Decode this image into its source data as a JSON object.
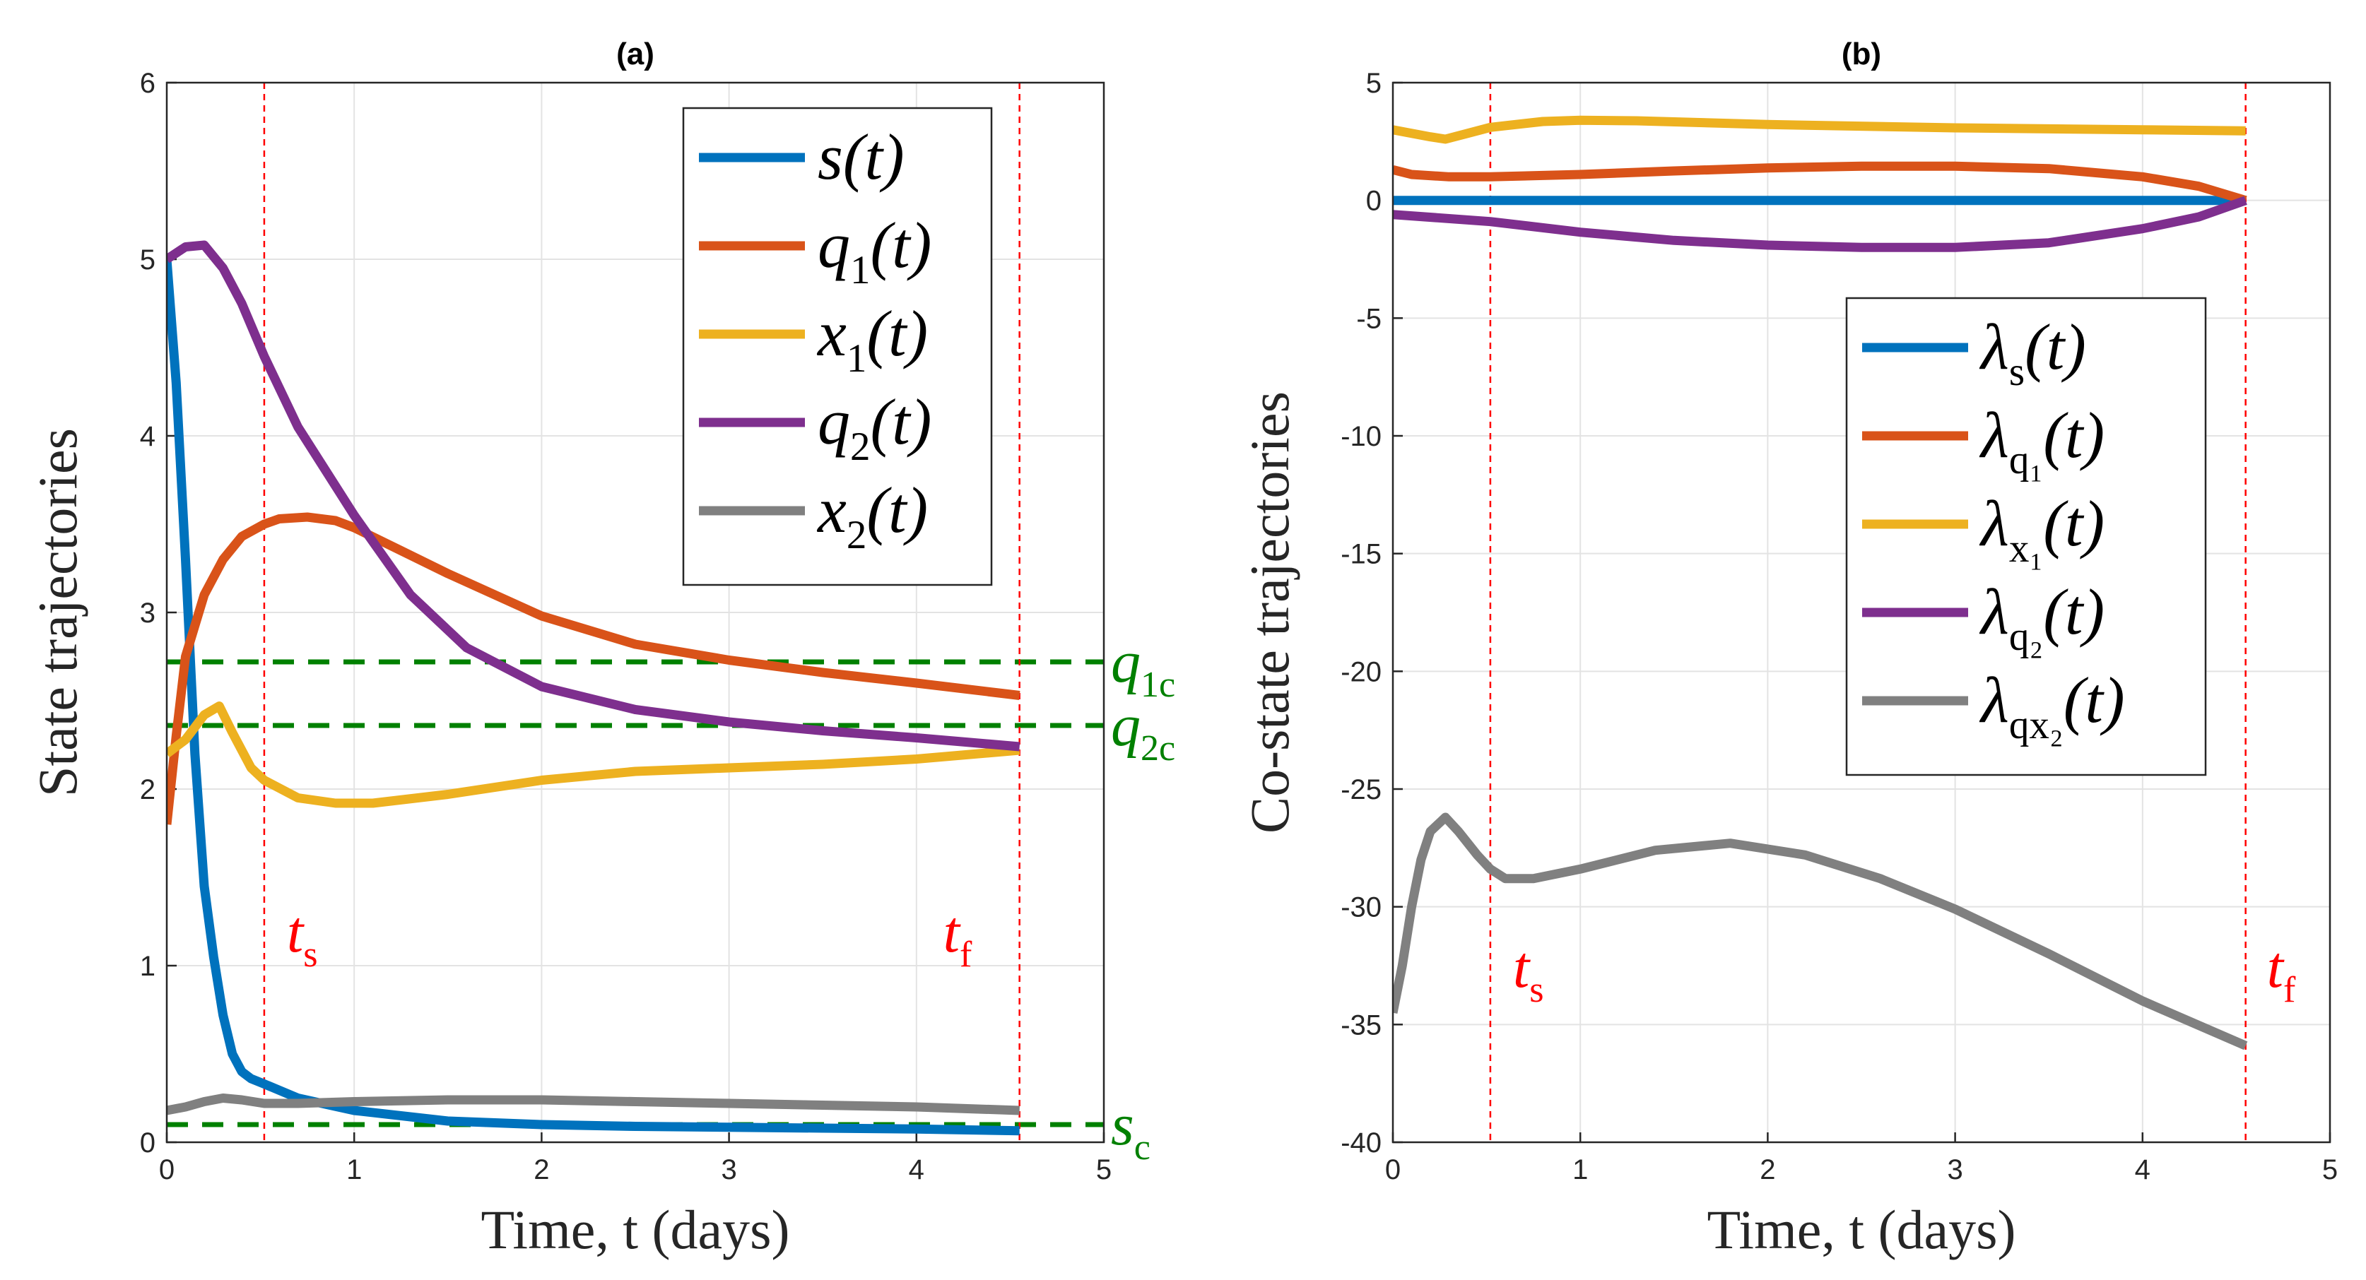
{
  "chart_data": [
    {
      "type": "line",
      "title": "(a)",
      "xlabel": "Time, t (days)",
      "ylabel": "State trajectories",
      "xlim": [
        0,
        5
      ],
      "ylim": [
        0,
        6
      ],
      "xticks": [
        0,
        1,
        2,
        3,
        4,
        5
      ],
      "yticks": [
        0,
        1,
        2,
        3,
        4,
        5,
        6
      ],
      "xtick_labels": [
        "0",
        "1",
        "2",
        "3",
        "4",
        "5"
      ],
      "ytick_labels": [
        "0",
        "1",
        "2",
        "3",
        "4",
        "5",
        "6"
      ],
      "grid": true,
      "legend_position": "top-right",
      "series": [
        {
          "name": "s(t)",
          "color": "#0072BD",
          "x": [
            0,
            0.05,
            0.1,
            0.15,
            0.2,
            0.25,
            0.3,
            0.35,
            0.4,
            0.45,
            0.52,
            0.7,
            1.0,
            1.5,
            2.0,
            2.5,
            3.0,
            3.5,
            4.0,
            4.55
          ],
          "y": [
            5.0,
            4.3,
            3.3,
            2.2,
            1.45,
            1.05,
            0.72,
            0.5,
            0.4,
            0.36,
            0.33,
            0.25,
            0.18,
            0.12,
            0.1,
            0.09,
            0.085,
            0.08,
            0.075,
            0.065
          ]
        },
        {
          "name": "q1(t)",
          "color": "#D95319",
          "x": [
            0,
            0.05,
            0.1,
            0.2,
            0.3,
            0.4,
            0.52,
            0.6,
            0.75,
            0.9,
            1.0,
            1.25,
            1.5,
            2.0,
            2.5,
            3.0,
            3.5,
            4.0,
            4.55
          ],
          "y": [
            1.8,
            2.3,
            2.75,
            3.1,
            3.3,
            3.43,
            3.5,
            3.53,
            3.54,
            3.52,
            3.48,
            3.35,
            3.22,
            2.98,
            2.82,
            2.73,
            2.66,
            2.6,
            2.53
          ]
        },
        {
          "name": "x1(t)",
          "color": "#EDB120",
          "x": [
            0,
            0.1,
            0.2,
            0.28,
            0.35,
            0.45,
            0.52,
            0.7,
            0.9,
            1.1,
            1.5,
            2.0,
            2.5,
            3.0,
            3.5,
            4.0,
            4.55
          ],
          "y": [
            2.2,
            2.28,
            2.42,
            2.47,
            2.32,
            2.12,
            2.05,
            1.95,
            1.92,
            1.92,
            1.97,
            2.05,
            2.1,
            2.12,
            2.14,
            2.17,
            2.22
          ]
        },
        {
          "name": "q2(t)",
          "color": "#7E2F8E",
          "x": [
            0,
            0.1,
            0.2,
            0.3,
            0.4,
            0.52,
            0.7,
            1.0,
            1.3,
            1.6,
            2.0,
            2.5,
            3.0,
            3.5,
            4.0,
            4.55
          ],
          "y": [
            5.0,
            5.07,
            5.08,
            4.95,
            4.75,
            4.45,
            4.05,
            3.55,
            3.1,
            2.8,
            2.58,
            2.45,
            2.38,
            2.33,
            2.29,
            2.24
          ]
        },
        {
          "name": "x2(t)",
          "color": "#808080",
          "x": [
            0,
            0.1,
            0.2,
            0.3,
            0.4,
            0.52,
            0.7,
            1.0,
            1.5,
            2.0,
            2.5,
            3.0,
            3.5,
            4.0,
            4.55
          ],
          "y": [
            0.18,
            0.2,
            0.23,
            0.25,
            0.24,
            0.22,
            0.22,
            0.23,
            0.24,
            0.24,
            0.23,
            0.22,
            0.21,
            0.2,
            0.18
          ]
        }
      ],
      "hlines": [
        {
          "label": "q1c",
          "y": 2.72,
          "color": "#008000"
        },
        {
          "label": "q2c",
          "y": 2.36,
          "color": "#008000"
        },
        {
          "label": "sc",
          "y": 0.1,
          "color": "#008000"
        }
      ],
      "vlines": [
        {
          "label": "ts",
          "x": 0.52,
          "color": "#FF0000",
          "label_y": 1.2
        },
        {
          "label": "tf",
          "x": 4.55,
          "color": "#FF0000",
          "label_y": 1.2
        }
      ]
    },
    {
      "type": "line",
      "title": "(b)",
      "xlabel": "Time, t (days)",
      "ylabel": "Co-state trajectories",
      "xlim": [
        0,
        5
      ],
      "ylim": [
        -40,
        5
      ],
      "xticks": [
        0,
        1,
        2,
        3,
        4,
        5
      ],
      "yticks": [
        5,
        0,
        -5,
        -10,
        -15,
        -20,
        -25,
        -30,
        -35,
        -40
      ],
      "xtick_labels": [
        "0",
        "1",
        "2",
        "3",
        "4",
        "5"
      ],
      "ytick_labels": [
        "5",
        "0",
        "-5",
        "-10",
        "-15",
        "-20",
        "-25",
        "-30",
        "-35",
        "-40"
      ],
      "grid": true,
      "legend_position": "top-right",
      "series": [
        {
          "name": "λs(t)",
          "color": "#0072BD",
          "x": [
            0,
            1,
            2,
            3,
            4,
            4.55
          ],
          "y": [
            0,
            0,
            0,
            0,
            0,
            0
          ]
        },
        {
          "name": "λq1(t)",
          "color": "#D95319",
          "x": [
            0,
            0.1,
            0.3,
            0.52,
            1.0,
            1.5,
            2.0,
            2.5,
            3.0,
            3.5,
            4.0,
            4.3,
            4.55
          ],
          "y": [
            1.3,
            1.1,
            1.0,
            1.0,
            1.1,
            1.25,
            1.38,
            1.45,
            1.45,
            1.35,
            1.0,
            0.6,
            0.0
          ]
        },
        {
          "name": "λx1(t)",
          "color": "#EDB120",
          "x": [
            0,
            0.1,
            0.2,
            0.28,
            0.4,
            0.52,
            0.8,
            1.0,
            1.3,
            2.0,
            3.0,
            4.0,
            4.55
          ],
          "y": [
            3.0,
            2.85,
            2.7,
            2.6,
            2.85,
            3.1,
            3.35,
            3.4,
            3.38,
            3.22,
            3.08,
            3.0,
            2.95
          ]
        },
        {
          "name": "λq2(t)",
          "color": "#7E2F8E",
          "x": [
            0,
            0.52,
            1.0,
            1.5,
            2.0,
            2.5,
            3.0,
            3.5,
            4.0,
            4.3,
            4.55
          ],
          "y": [
            -0.6,
            -0.9,
            -1.35,
            -1.7,
            -1.9,
            -2.0,
            -2.0,
            -1.8,
            -1.2,
            -0.7,
            0.0
          ]
        },
        {
          "name": "λqx2(t)",
          "color": "#808080",
          "x": [
            0,
            0.05,
            0.1,
            0.15,
            0.2,
            0.28,
            0.35,
            0.45,
            0.52,
            0.6,
            0.75,
            1.0,
            1.4,
            1.8,
            2.2,
            2.6,
            3.0,
            3.5,
            4.0,
            4.55
          ],
          "y": [
            -34.5,
            -32.5,
            -30.0,
            -28.0,
            -26.8,
            -26.2,
            -26.8,
            -27.8,
            -28.4,
            -28.8,
            -28.8,
            -28.4,
            -27.6,
            -27.3,
            -27.8,
            -28.8,
            -30.1,
            -32.0,
            -34.0,
            -35.9
          ]
        }
      ],
      "hlines": [],
      "vlines": [
        {
          "label": "ts",
          "x": 0.52,
          "color": "#FF0000",
          "label_y": -32.5
        },
        {
          "label": "tf",
          "x": 4.55,
          "color": "#FF0000",
          "label_y": -32.5
        }
      ]
    }
  ],
  "legend_a": [
    {
      "base": "s",
      "sub": "",
      "rest": "(t)"
    },
    {
      "base": "q",
      "sub": "1",
      "rest": "(t)"
    },
    {
      "base": "x",
      "sub": "1",
      "rest": "(t)"
    },
    {
      "base": "q",
      "sub": "2",
      "rest": "(t)"
    },
    {
      "base": "x",
      "sub": "2",
      "rest": "(t)"
    }
  ],
  "legend_b": [
    {
      "base": "λ",
      "sub": "s",
      "rest": "(t)"
    },
    {
      "base": "λ",
      "sub": "q₁",
      "rest": "(t)"
    },
    {
      "base": "λ",
      "sub": "x₁",
      "rest": "(t)"
    },
    {
      "base": "λ",
      "sub": "q₂",
      "rest": "(t)"
    },
    {
      "base": "λ",
      "sub": "qx₂",
      "rest": "(t)"
    }
  ],
  "annotations_a": {
    "q1c": {
      "base": "q",
      "sub": "1c"
    },
    "q2c": {
      "base": "q",
      "sub": "2c"
    },
    "sc": {
      "base": "s",
      "sub": "c"
    },
    "ts": {
      "base": "t",
      "sub": "s"
    },
    "tf": {
      "base": "t",
      "sub": "f"
    }
  },
  "annotations_b": {
    "ts": {
      "base": "t",
      "sub": "s"
    },
    "tf": {
      "base": "t",
      "sub": "f"
    }
  }
}
